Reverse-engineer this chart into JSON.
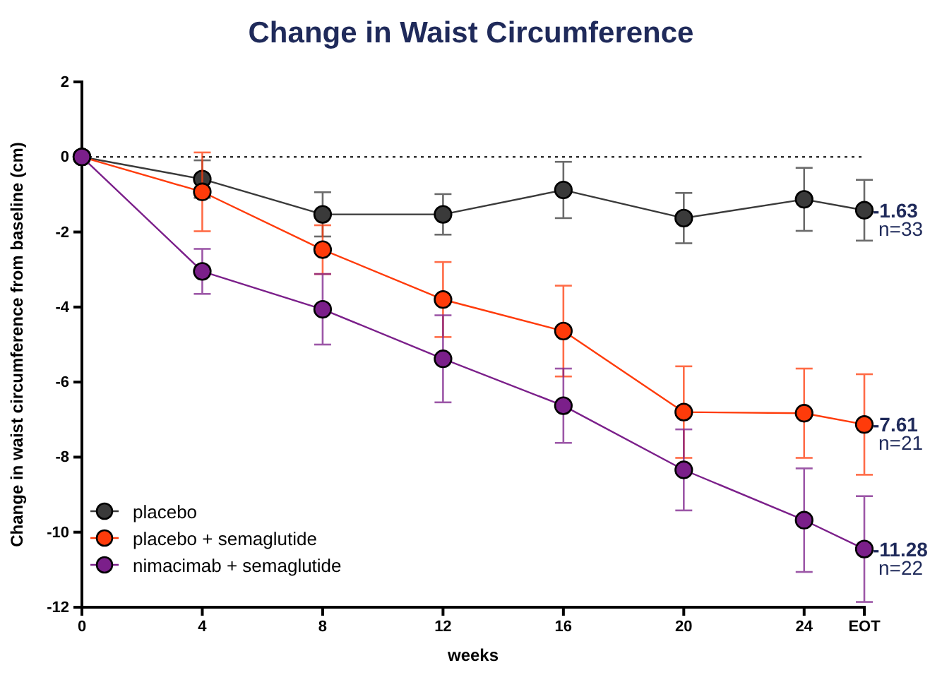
{
  "chart_data": {
    "type": "line",
    "title": "Change in Waist Circumference",
    "xlabel": "weeks",
    "ylabel": "Change in waist circumference from baseline (cm)",
    "x": [
      0,
      4,
      8,
      12,
      16,
      20,
      24,
      26
    ],
    "xlim": [
      0,
      26
    ],
    "xticks": [
      0,
      4,
      8,
      12,
      16,
      20,
      24,
      {
        "value": 26,
        "label": "EOT"
      }
    ],
    "ylim": [
      -12,
      2
    ],
    "yticks": [
      -12,
      -10,
      -8,
      -6,
      -4,
      -2,
      0,
      2
    ],
    "grid": false,
    "legend": "bottom left",
    "marker": "circle",
    "line_style": "solid",
    "ref_lines": [
      {
        "axis": "y",
        "value": 0,
        "line_style": "dotted",
        "color": "#333333"
      }
    ],
    "series": [
      {
        "name": "placebo",
        "color": "#3a3a3a",
        "values": [
          0,
          -0.59,
          -1.53,
          -1.53,
          -0.88,
          -1.63,
          -1.13,
          -1.42
        ],
        "errors": [
          null,
          0.5,
          0.59,
          0.54,
          0.75,
          0.67,
          0.84,
          0.81
        ]
      },
      {
        "name": "placebo + semaglutide",
        "color": "#ff3b0a",
        "values": [
          0,
          -0.93,
          -2.47,
          -3.8,
          -4.64,
          -6.8,
          -6.83,
          -7.13
        ],
        "errors": [
          null,
          1.05,
          0.65,
          1.0,
          1.21,
          1.22,
          1.19,
          1.34
        ]
      },
      {
        "name": "nimacimab + semaglutide",
        "color": "#7b1f8a",
        "values": [
          0,
          -3.05,
          -4.06,
          -5.38,
          -6.63,
          -8.34,
          -9.68,
          -10.45
        ],
        "errors": [
          null,
          0.6,
          0.94,
          1.16,
          0.99,
          1.08,
          1.38,
          1.41
        ]
      }
    ],
    "annotations": [
      "-1.63",
      "n=33",
      "-7.61",
      "n=21",
      "-11.28",
      "n=22"
    ]
  }
}
